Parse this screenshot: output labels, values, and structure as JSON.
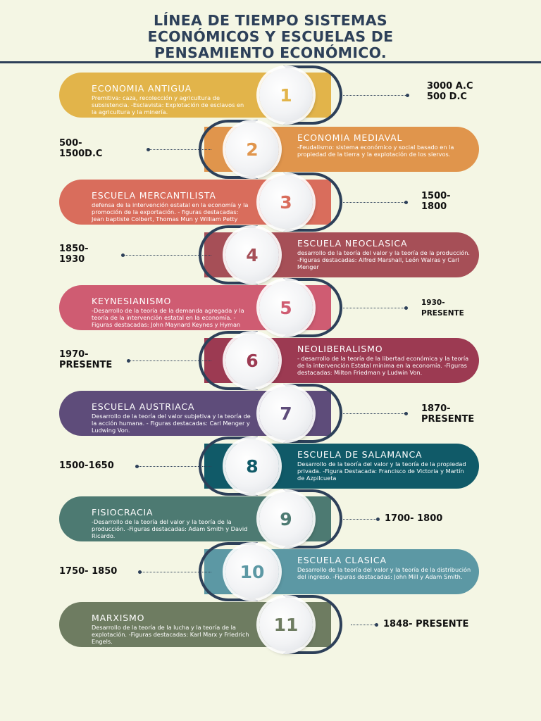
{
  "title": {
    "line1": "LÍNEA DE TIEMPO SISTEMAS",
    "line2": "ECONÓMICOS Y ESCUELAS DE",
    "line3": "PENSAMIENTO ECONÓMICO."
  },
  "colors": {
    "navy": "#2d4059",
    "e1": "#e2b44a",
    "e2": "#e0954c",
    "e3": "#d96d5c",
    "e4": "#a64f57",
    "e5": "#cf5c72",
    "e6": "#9c3a52",
    "e7": "#5e4c7a",
    "e8": "#105a68",
    "e9": "#4d7a72",
    "e10": "#5c98a4",
    "e11": "#6e7c61"
  },
  "entries": [
    {
      "number": "1",
      "name": "ECONOMIA ANTIGUA",
      "desc": "Premitiva: caza, recolección y agricultura de subsistencia. -Esclavista: Explotación de esclavos en la agricultura y la minería.",
      "date": "3000 A.C 500 D.C"
    },
    {
      "number": "2",
      "name": "ECONOMIA MEDIAVAL",
      "desc": "-Feudalismo: sistema económico y social basado en la propiedad de la tierra y la explotación de los siervos.",
      "date": "500-1500D.C"
    },
    {
      "number": "3",
      "name": "ESCUELA MERCANTILISTA",
      "desc": "defensa de la intervención estatal en la economía y la promoción de la exportación. - figuras destacadas: Jean baptiste Colbert, Thomas Mun y William Petty",
      "date": "1500-1800"
    },
    {
      "number": "4",
      "name": "ESCUELA NEOCLASICA",
      "desc": "desarrollo de la teoría del valor y la teoría de la producción. -Figuras destacadas: Alfred Marshall, León Walras y Carl Menger",
      "date": "1850-1930"
    },
    {
      "number": "5",
      "name": "KEYNESIANISMO",
      "desc": "-Desarrollo de la teoría de la demanda agregada y la teoría de la intervención estatal en la economía. -Figuras destacadas: John Maynard Keynes y Hyman Minsky",
      "date": "1930-PRESENTE"
    },
    {
      "number": "6",
      "name": "NEOLIBERALISMO",
      "desc": "- desarrollo de la teoría de la libertad económica y la teoría de la intervención Estatal mínima en la economía. -Figuras destacadas: Milton Friedman y Ludwin Von.",
      "date": "1970-PRESENTE"
    },
    {
      "number": "7",
      "name": "ESCUELA AUSTRIACA",
      "desc": "Desarrollo de la teoría del valor subjetiva y la teoría de la acción humana. - Figuras destacadas: Carl Menger y Ludwing Von.",
      "date": "1870-PRESENTE"
    },
    {
      "number": "8",
      "name": "ESCUELA DE SALAMANCA",
      "desc": "Desarrollo de la teoría del valor y la teoría de la propiedad privada. -Figura Destacada: Francisco de Victoria y Martín de Azpilcueta",
      "date": "1500-1650"
    },
    {
      "number": "9",
      "name": "FISIOCRACIA",
      "desc": "-Desarrollo de la teoría del valor y la teoría de la producción. -Figuras destacadas: Adam Smith y David Ricardo.",
      "date": "1700- 1800"
    },
    {
      "number": "10",
      "name": "ESCUELA CLASICA",
      "desc": "Desarrollo de la teoría del valor y la teoría de la distribución del ingreso. -Figuras destacadas: John Mill y Adam Smith.",
      "date": "1750- 1850"
    },
    {
      "number": "11",
      "name": "MARXISMO",
      "desc": "Desarrollo de la teoría de la lucha y la teoría de la explotación. -Figuras destacadas: Karl Marx y Friedrich Engels.",
      "date": "1848- PRESENTE"
    }
  ]
}
